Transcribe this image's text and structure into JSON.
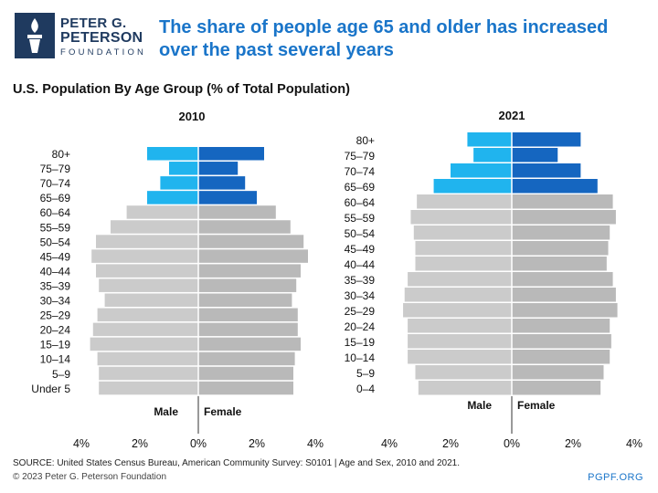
{
  "logo": {
    "line1": "PETER G.",
    "line2": "PETERSON",
    "line3": "FOUNDATION"
  },
  "title": "The share of people age 65 and older has increased over the past several years",
  "subtitle": "U.S. Population By Age Group (% of Total Population)",
  "footer": {
    "source": "SOURCE: United States Census Bureau, American Community Survey: S0101 | Age and Sex, 2010 and 2021.",
    "copyright": "© 2023 Peter G. Peterson Foundation",
    "site": "PGPF.ORG"
  },
  "colors": {
    "male_65plus": "#20b4ee",
    "female_65plus": "#1566c0",
    "male_under65": "#cbcbcb",
    "female_under65": "#b9b9b9"
  },
  "chart_data": [
    {
      "type": "bar",
      "title": "2010",
      "orientation": "horizontal-pyramid",
      "xlim": [
        -4,
        4
      ],
      "x_ticks": [
        "4%",
        "2%",
        "0%",
        "2%",
        "4%"
      ],
      "male_label": "Male",
      "female_label": "Female",
      "categories": [
        "80+",
        "75–79",
        "70–74",
        "65–69",
        "60–64",
        "55–59",
        "50–54",
        "45–49",
        "40–44",
        "35–39",
        "30–34",
        "25–29",
        "20–24",
        "15–19",
        "10–14",
        "5–9",
        "Under 5"
      ],
      "series": [
        {
          "name": "Male",
          "values": [
            1.75,
            1.0,
            1.3,
            1.75,
            2.45,
            3.0,
            3.5,
            3.65,
            3.5,
            3.4,
            3.2,
            3.45,
            3.6,
            3.7,
            3.45,
            3.4,
            3.4
          ]
        },
        {
          "name": "Female",
          "values": [
            2.25,
            1.35,
            1.6,
            2.0,
            2.65,
            3.15,
            3.6,
            3.75,
            3.5,
            3.35,
            3.2,
            3.4,
            3.4,
            3.5,
            3.3,
            3.25,
            3.25
          ]
        }
      ]
    },
    {
      "type": "bar",
      "title": "2021",
      "orientation": "horizontal-pyramid",
      "xlim": [
        -4,
        4
      ],
      "x_ticks": [
        "4%",
        "2%",
        "0%",
        "2%",
        "4%"
      ],
      "male_label": "Male",
      "female_label": "Female",
      "categories": [
        "80+",
        "75–79",
        "70–74",
        "65–69",
        "60–64",
        "55–59",
        "50–54",
        "45–49",
        "40–44",
        "35–39",
        "30–34",
        "25–29",
        "20–24",
        "15–19",
        "10–14",
        "5–9",
        "0–4"
      ],
      "series": [
        {
          "name": "Male",
          "values": [
            1.45,
            1.25,
            2.0,
            2.55,
            3.1,
            3.3,
            3.2,
            3.15,
            3.15,
            3.4,
            3.5,
            3.55,
            3.4,
            3.4,
            3.4,
            3.15,
            3.05
          ]
        },
        {
          "name": "Female",
          "values": [
            2.25,
            1.5,
            2.25,
            2.8,
            3.3,
            3.4,
            3.2,
            3.15,
            3.1,
            3.3,
            3.4,
            3.45,
            3.2,
            3.25,
            3.2,
            3.0,
            2.9
          ]
        }
      ]
    }
  ]
}
